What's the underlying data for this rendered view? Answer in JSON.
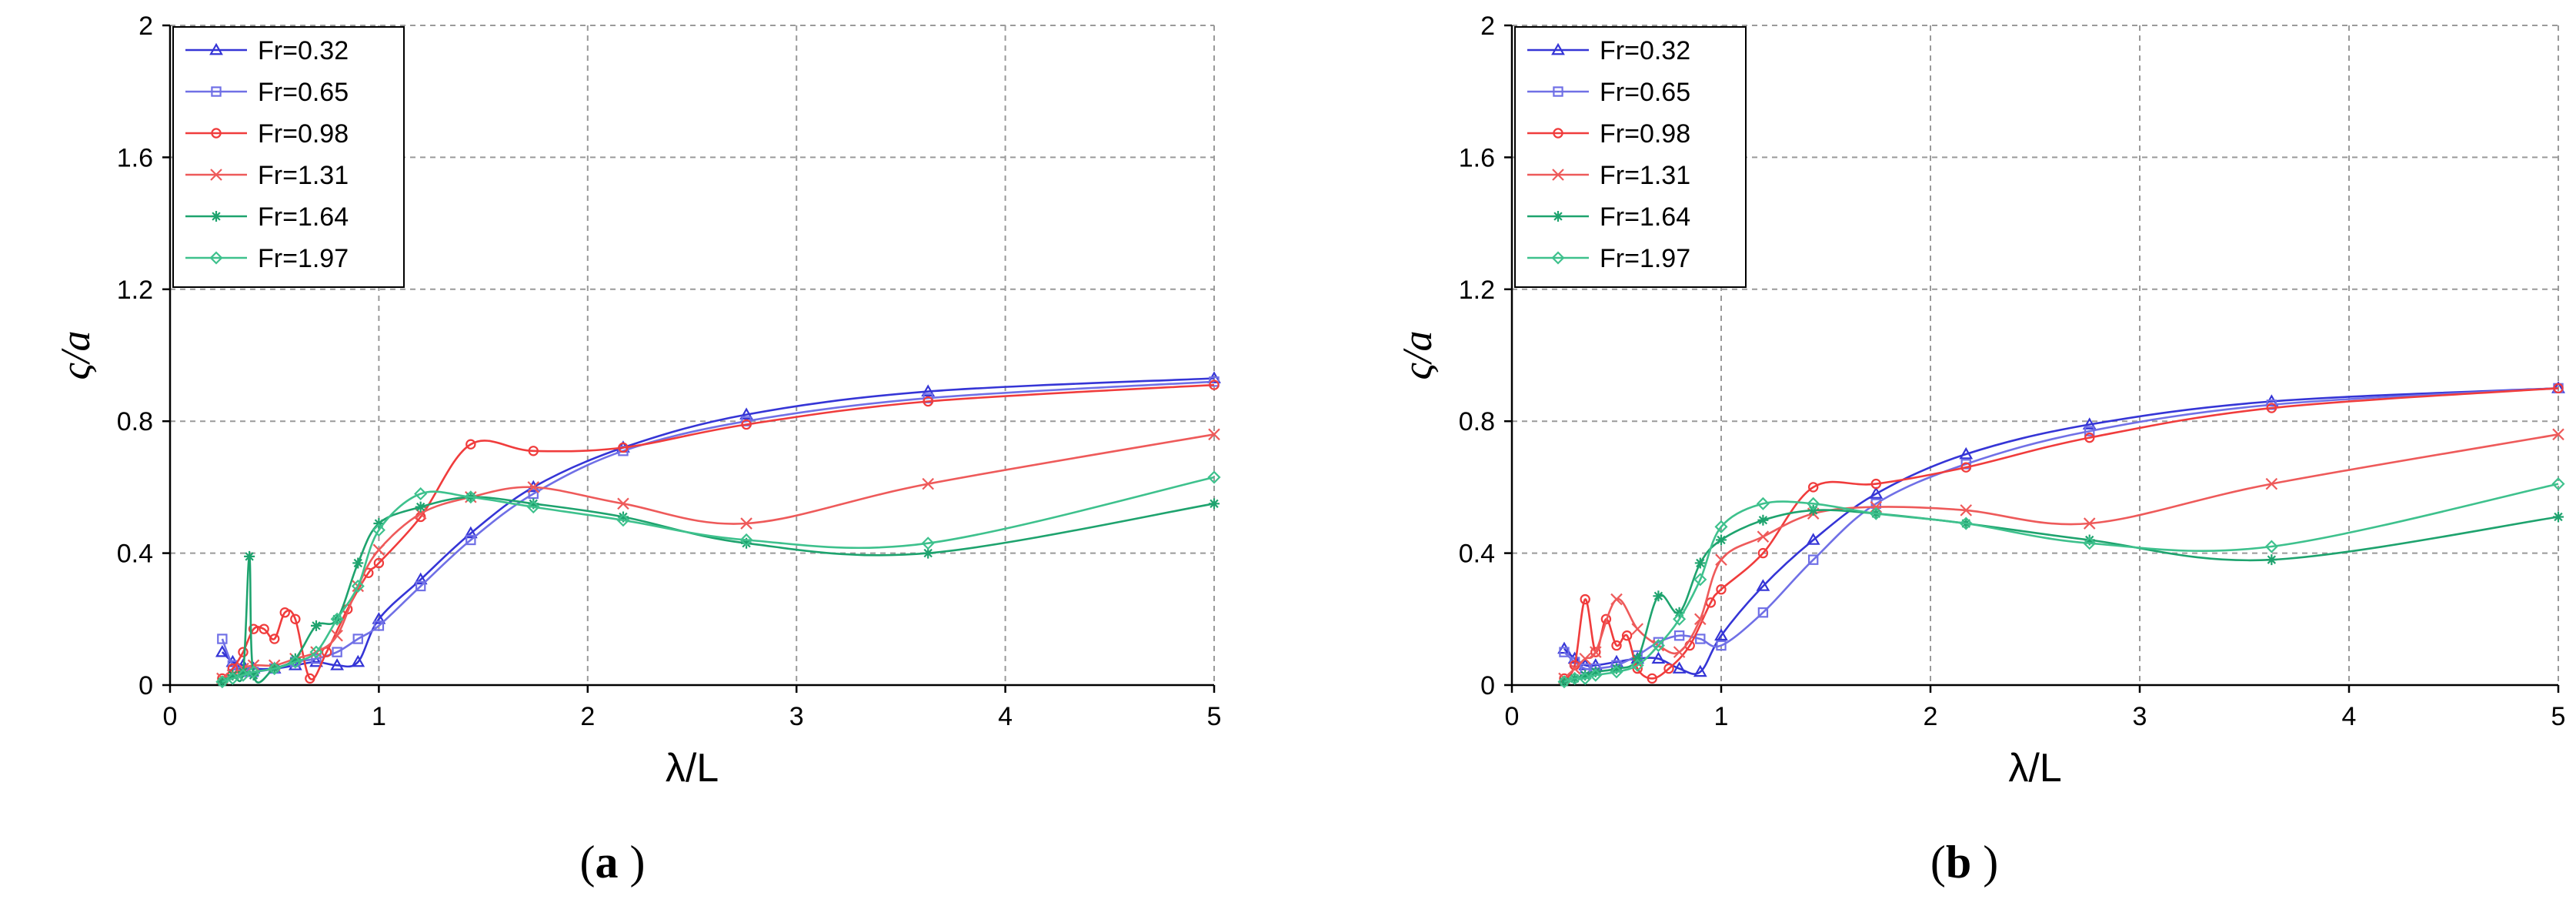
{
  "figure": {
    "panel_labels": [
      "(a)",
      "(b)"
    ]
  },
  "chart_data": [
    {
      "type": "line",
      "panel": "(a)",
      "xlabel": "λ/L",
      "ylabel": "ς/a",
      "xlim": [
        0,
        5
      ],
      "ylim": [
        0,
        2
      ],
      "xticks": [
        0,
        1,
        2,
        3,
        4,
        5
      ],
      "yticks": [
        0,
        0.4,
        0.8,
        1.2,
        1.6,
        2
      ],
      "ytick_labels": [
        "0",
        "0.4",
        "0.8",
        "1.2",
        "1.6",
        "2"
      ],
      "grid": true,
      "legend_position": "top-left",
      "series": [
        {
          "name": "Fr=0.32",
          "color": "#3535d6",
          "marker": "triangle",
          "x": [
            0.25,
            0.3,
            0.35,
            0.4,
            0.5,
            0.6,
            0.7,
            0.8,
            0.9,
            1.0,
            1.2,
            1.44,
            1.74,
            2.17,
            2.76,
            3.63,
            5.0
          ],
          "y": [
            0.1,
            0.07,
            0.06,
            0.05,
            0.05,
            0.06,
            0.07,
            0.06,
            0.07,
            0.2,
            0.32,
            0.46,
            0.6,
            0.72,
            0.82,
            0.89,
            0.93
          ]
        },
        {
          "name": "Fr=0.65",
          "color": "#7070e6",
          "marker": "square",
          "x": [
            0.25,
            0.3,
            0.35,
            0.4,
            0.5,
            0.6,
            0.7,
            0.8,
            0.9,
            1.0,
            1.2,
            1.44,
            1.74,
            2.17,
            2.76,
            3.63,
            5.0
          ],
          "y": [
            0.14,
            0.06,
            0.04,
            0.04,
            0.05,
            0.07,
            0.08,
            0.1,
            0.14,
            0.18,
            0.3,
            0.44,
            0.58,
            0.71,
            0.8,
            0.87,
            0.92
          ]
        },
        {
          "name": "Fr=0.98",
          "color": "#f03c3c",
          "marker": "circle",
          "x": [
            0.25,
            0.3,
            0.35,
            0.4,
            0.45,
            0.5,
            0.55,
            0.6,
            0.67,
            0.75,
            0.85,
            0.95,
            1.0,
            1.2,
            1.44,
            1.74,
            2.17,
            2.76,
            3.63,
            5.0
          ],
          "y": [
            0.02,
            0.05,
            0.1,
            0.17,
            0.17,
            0.14,
            0.22,
            0.2,
            0.02,
            0.1,
            0.23,
            0.34,
            0.37,
            0.51,
            0.73,
            0.71,
            0.72,
            0.79,
            0.86,
            0.91
          ]
        },
        {
          "name": "Fr=1.31",
          "color": "#ee5a5a",
          "marker": "x",
          "x": [
            0.25,
            0.3,
            0.35,
            0.4,
            0.5,
            0.6,
            0.7,
            0.8,
            0.9,
            1.0,
            1.2,
            1.44,
            1.74,
            2.17,
            2.76,
            3.63,
            5.0
          ],
          "y": [
            0.02,
            0.03,
            0.05,
            0.06,
            0.06,
            0.08,
            0.1,
            0.15,
            0.3,
            0.41,
            0.52,
            0.57,
            0.6,
            0.55,
            0.49,
            0.61,
            0.76
          ]
        },
        {
          "name": "Fr=1.64",
          "color": "#1ea36e",
          "marker": "star",
          "x": [
            0.25,
            0.3,
            0.35,
            0.38,
            0.4,
            0.5,
            0.6,
            0.7,
            0.8,
            0.9,
            1.0,
            1.2,
            1.44,
            1.74,
            2.17,
            2.76,
            3.63,
            5.0
          ],
          "y": [
            0.01,
            0.03,
            0.04,
            0.39,
            0.03,
            0.05,
            0.08,
            0.18,
            0.2,
            0.37,
            0.49,
            0.54,
            0.57,
            0.55,
            0.51,
            0.43,
            0.4,
            0.55
          ]
        },
        {
          "name": "Fr=1.97",
          "color": "#3ec18d",
          "marker": "diamond",
          "x": [
            0.25,
            0.3,
            0.35,
            0.4,
            0.5,
            0.6,
            0.7,
            0.8,
            0.9,
            1.0,
            1.2,
            1.44,
            1.74,
            2.17,
            2.76,
            3.63,
            5.0
          ],
          "y": [
            0.01,
            0.02,
            0.03,
            0.04,
            0.05,
            0.07,
            0.1,
            0.2,
            0.3,
            0.47,
            0.58,
            0.57,
            0.54,
            0.5,
            0.44,
            0.43,
            0.63
          ]
        }
      ]
    },
    {
      "type": "line",
      "panel": "(b)",
      "xlabel": "λ/L",
      "ylabel": "ς/a",
      "xlim": [
        0,
        5
      ],
      "ylim": [
        0,
        2
      ],
      "xticks": [
        0,
        1,
        2,
        3,
        4,
        5
      ],
      "yticks": [
        0,
        0.4,
        0.8,
        1.2,
        1.6,
        2
      ],
      "ytick_labels": [
        "0",
        "0.4",
        "0.8",
        "1.2",
        "1.6",
        "2"
      ],
      "grid": true,
      "legend_position": "top-left",
      "series": [
        {
          "name": "Fr=0.32",
          "color": "#3535d6",
          "marker": "triangle",
          "x": [
            0.25,
            0.3,
            0.35,
            0.4,
            0.5,
            0.6,
            0.7,
            0.8,
            0.9,
            1.0,
            1.2,
            1.44,
            1.74,
            2.17,
            2.76,
            3.63,
            5.0
          ],
          "y": [
            0.11,
            0.08,
            0.06,
            0.06,
            0.07,
            0.08,
            0.08,
            0.05,
            0.04,
            0.15,
            0.3,
            0.44,
            0.58,
            0.7,
            0.79,
            0.86,
            0.9
          ]
        },
        {
          "name": "Fr=0.65",
          "color": "#7070e6",
          "marker": "square",
          "x": [
            0.25,
            0.3,
            0.35,
            0.4,
            0.5,
            0.6,
            0.7,
            0.8,
            0.9,
            1.0,
            1.2,
            1.44,
            1.74,
            2.17,
            2.76,
            3.63,
            5.0
          ],
          "y": [
            0.1,
            0.07,
            0.05,
            0.05,
            0.06,
            0.09,
            0.13,
            0.15,
            0.14,
            0.12,
            0.22,
            0.38,
            0.55,
            0.67,
            0.77,
            0.85,
            0.9
          ]
        },
        {
          "name": "Fr=0.98",
          "color": "#f03c3c",
          "marker": "circle",
          "x": [
            0.25,
            0.3,
            0.35,
            0.4,
            0.45,
            0.5,
            0.55,
            0.6,
            0.67,
            0.75,
            0.85,
            0.95,
            1.0,
            1.2,
            1.44,
            1.74,
            2.17,
            2.76,
            3.63,
            5.0
          ],
          "y": [
            0.02,
            0.06,
            0.26,
            0.1,
            0.2,
            0.12,
            0.15,
            0.05,
            0.02,
            0.05,
            0.12,
            0.25,
            0.29,
            0.4,
            0.6,
            0.61,
            0.66,
            0.75,
            0.84,
            0.9
          ]
        },
        {
          "name": "Fr=1.31",
          "color": "#ee5a5a",
          "marker": "x",
          "x": [
            0.25,
            0.3,
            0.35,
            0.4,
            0.5,
            0.6,
            0.7,
            0.8,
            0.9,
            1.0,
            1.2,
            1.44,
            1.74,
            2.17,
            2.76,
            3.63,
            5.0
          ],
          "y": [
            0.02,
            0.05,
            0.08,
            0.1,
            0.26,
            0.17,
            0.12,
            0.1,
            0.2,
            0.38,
            0.45,
            0.52,
            0.54,
            0.53,
            0.49,
            0.61,
            0.76
          ]
        },
        {
          "name": "Fr=1.64",
          "color": "#1ea36e",
          "marker": "star",
          "x": [
            0.25,
            0.3,
            0.35,
            0.4,
            0.5,
            0.6,
            0.7,
            0.8,
            0.9,
            1.0,
            1.2,
            1.44,
            1.74,
            2.17,
            2.76,
            3.63,
            5.0
          ],
          "y": [
            0.01,
            0.02,
            0.03,
            0.04,
            0.05,
            0.08,
            0.27,
            0.22,
            0.37,
            0.44,
            0.5,
            0.53,
            0.52,
            0.49,
            0.44,
            0.38,
            0.51
          ]
        },
        {
          "name": "Fr=1.97",
          "color": "#3ec18d",
          "marker": "diamond",
          "x": [
            0.25,
            0.3,
            0.35,
            0.4,
            0.5,
            0.6,
            0.7,
            0.8,
            0.9,
            1.0,
            1.2,
            1.44,
            1.74,
            2.17,
            2.76,
            3.63,
            5.0
          ],
          "y": [
            0.01,
            0.02,
            0.02,
            0.03,
            0.04,
            0.06,
            0.12,
            0.2,
            0.32,
            0.48,
            0.55,
            0.55,
            0.52,
            0.49,
            0.43,
            0.42,
            0.61
          ]
        }
      ]
    }
  ]
}
